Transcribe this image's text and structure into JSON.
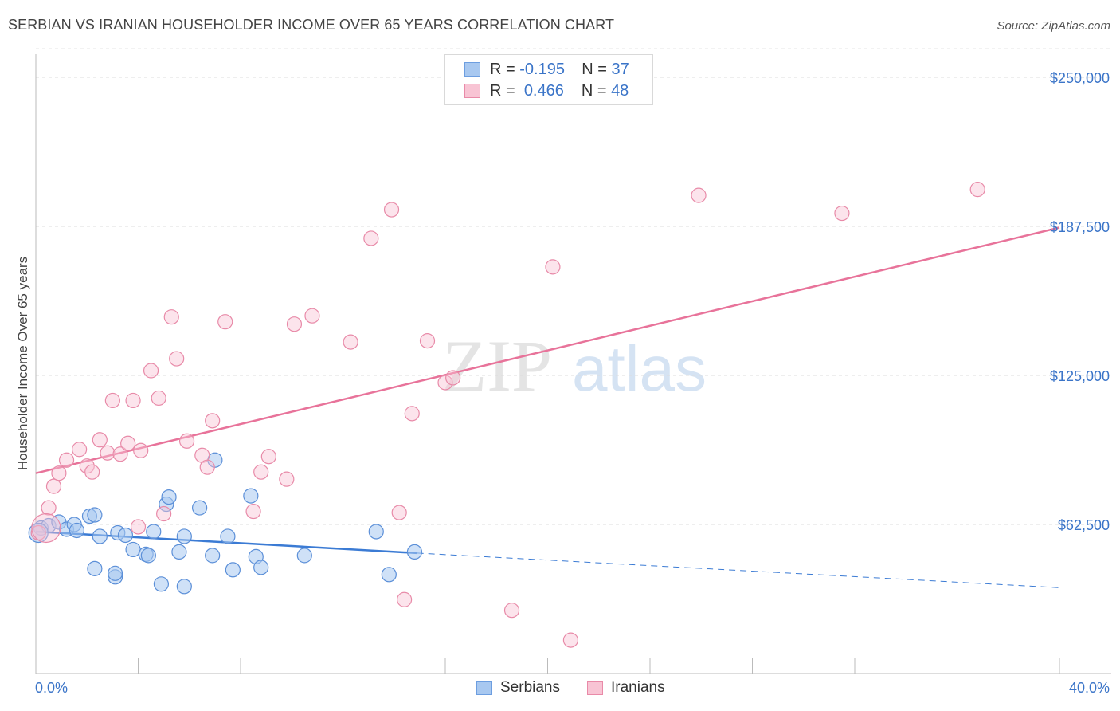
{
  "header": {
    "title": "SERBIAN VS IRANIAN HOUSEHOLDER INCOME OVER 65 YEARS CORRELATION CHART",
    "source": "Source: ZipAtlas.com"
  },
  "watermark": {
    "zip": "ZIP",
    "atlas": "atlas"
  },
  "legend": {
    "rows": [
      {
        "r_label": "R =",
        "r_value": "-0.195",
        "n_label": "N =",
        "n_value": "37",
        "color": "#a8c8f0",
        "border": "#6d9ee0"
      },
      {
        "r_label": "R =",
        "r_value": "0.466",
        "n_label": "N =",
        "n_value": "48",
        "color": "#f8c4d4",
        "border": "#e98aa8"
      }
    ]
  },
  "bottom_legend": {
    "serbians": "Serbians",
    "iranians": "Iranians"
  },
  "chart_data": {
    "type": "scatter",
    "title": "SERBIAN VS IRANIAN HOUSEHOLDER INCOME OVER 65 YEARS CORRELATION CHART",
    "xlabel": "",
    "ylabel": "Householder Income Over 65 years",
    "xlim": [
      0,
      40
    ],
    "ylim": [
      0,
      262000
    ],
    "x_tick_labels": [
      "0.0%",
      "40.0%"
    ],
    "y_ticks": [
      62500,
      125000,
      187500,
      250000
    ],
    "y_tick_labels": [
      "$62,500",
      "$125,000",
      "$187,500",
      "$250,000"
    ],
    "grid": true,
    "colors": {
      "serbians": "#3b7bd4",
      "iranians": "#e8739a"
    },
    "series": [
      {
        "name": "Serbians",
        "color": "#3b7bd4",
        "points": [
          [
            0.2,
            61000
          ],
          [
            0.5,
            62000
          ],
          [
            0.9,
            63500
          ],
          [
            1.2,
            60500
          ],
          [
            1.5,
            62500
          ],
          [
            1.6,
            60000
          ],
          [
            2.1,
            66000
          ],
          [
            2.3,
            66500
          ],
          [
            2.5,
            57500
          ],
          [
            2.3,
            44000
          ],
          [
            3.1,
            40500
          ],
          [
            3.1,
            42000
          ],
          [
            3.2,
            59000
          ],
          [
            3.5,
            58000
          ],
          [
            3.8,
            52000
          ],
          [
            4.3,
            50000
          ],
          [
            4.4,
            49500
          ],
          [
            4.6,
            59500
          ],
          [
            4.9,
            37500
          ],
          [
            5.1,
            71000
          ],
          [
            5.2,
            74000
          ],
          [
            5.6,
            51000
          ],
          [
            5.8,
            36500
          ],
          [
            5.8,
            57500
          ],
          [
            6.4,
            69500
          ],
          [
            6.9,
            49500
          ],
          [
            7.0,
            89500
          ],
          [
            7.5,
            57500
          ],
          [
            7.7,
            43500
          ],
          [
            8.4,
            74500
          ],
          [
            8.6,
            49000
          ],
          [
            8.8,
            44500
          ],
          [
            10.5,
            49500
          ],
          [
            13.3,
            59500
          ],
          [
            13.8,
            41500
          ],
          [
            14.8,
            51000
          ],
          [
            0.1,
            59000
          ]
        ]
      },
      {
        "name": "Iranians",
        "color": "#e8739a",
        "points": [
          [
            0.1,
            59000
          ],
          [
            0.5,
            69500
          ],
          [
            0.7,
            78500
          ],
          [
            0.9,
            84000
          ],
          [
            1.2,
            89500
          ],
          [
            1.7,
            94000
          ],
          [
            2.0,
            87000
          ],
          [
            2.2,
            84500
          ],
          [
            2.5,
            98000
          ],
          [
            2.8,
            92500
          ],
          [
            3.0,
            114500
          ],
          [
            3.3,
            92000
          ],
          [
            3.6,
            96500
          ],
          [
            3.8,
            114500
          ],
          [
            4.0,
            61500
          ],
          [
            4.1,
            93500
          ],
          [
            4.5,
            127000
          ],
          [
            4.8,
            115500
          ],
          [
            5.0,
            67000
          ],
          [
            5.3,
            149500
          ],
          [
            5.5,
            132000
          ],
          [
            5.9,
            97500
          ],
          [
            6.5,
            91500
          ],
          [
            6.7,
            86500
          ],
          [
            6.9,
            106000
          ],
          [
            7.4,
            147500
          ],
          [
            8.5,
            68000
          ],
          [
            8.8,
            84500
          ],
          [
            9.1,
            91000
          ],
          [
            9.8,
            81500
          ],
          [
            10.1,
            146500
          ],
          [
            10.8,
            150000
          ],
          [
            12.3,
            139000
          ],
          [
            13.1,
            182500
          ],
          [
            13.9,
            194500
          ],
          [
            14.2,
            67500
          ],
          [
            14.4,
            31000
          ],
          [
            14.7,
            109000
          ],
          [
            15.3,
            139500
          ],
          [
            16.0,
            122000
          ],
          [
            16.3,
            124000
          ],
          [
            18.6,
            26500
          ],
          [
            20.2,
            170500
          ],
          [
            20.9,
            14000
          ],
          [
            25.9,
            200500
          ],
          [
            31.5,
            193000
          ],
          [
            36.8,
            203000
          ],
          [
            0.4,
            61000
          ]
        ]
      }
    ],
    "trendlines": [
      {
        "series": "Serbians",
        "x": [
          0,
          14.9
        ],
        "y": [
          59500,
          50500
        ],
        "style": "solid"
      },
      {
        "series": "Serbians",
        "x": [
          14.9,
          40
        ],
        "y": [
          50500,
          36000
        ],
        "style": "dashed"
      },
      {
        "series": "Iranians",
        "x": [
          0,
          40
        ],
        "y": [
          84000,
          187000
        ],
        "style": "solid"
      }
    ]
  }
}
